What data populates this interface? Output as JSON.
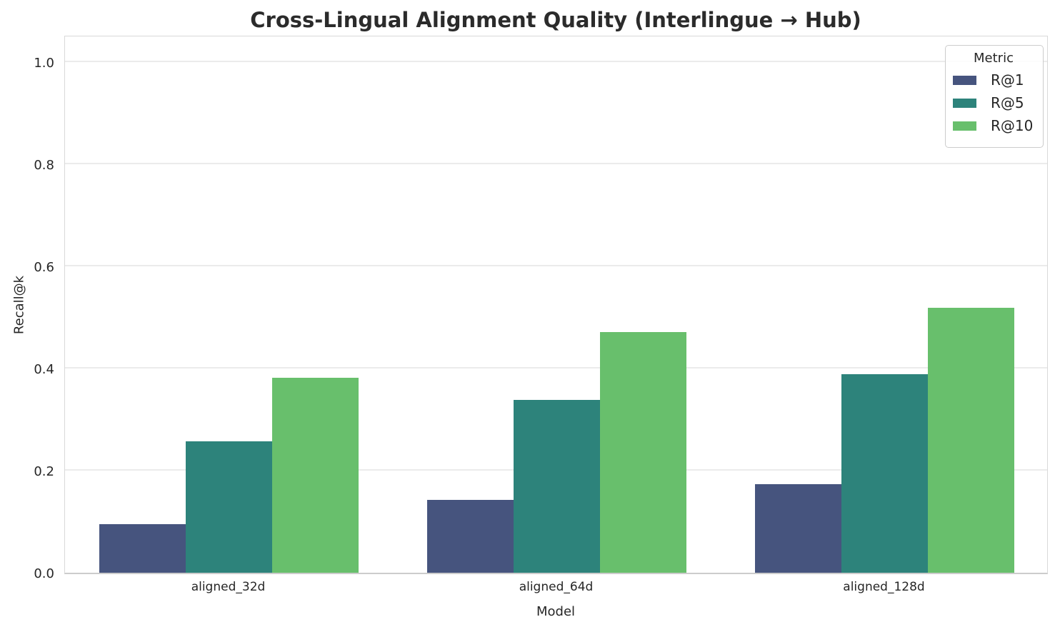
{
  "chart_data": {
    "type": "bar",
    "title": "Cross-Lingual Alignment Quality (Interlingue → Hub)",
    "xlabel": "Model",
    "ylabel": "Recall@k",
    "categories": [
      "aligned_32d",
      "aligned_64d",
      "aligned_128d"
    ],
    "series": [
      {
        "name": "R@1",
        "color": "#46547E",
        "values": [
          0.095,
          0.142,
          0.173
        ]
      },
      {
        "name": "R@5",
        "color": "#2D837B",
        "values": [
          0.257,
          0.338,
          0.389
        ]
      },
      {
        "name": "R@10",
        "color": "#68BF6C",
        "values": [
          0.382,
          0.471,
          0.518
        ]
      }
    ],
    "ylim": [
      0,
      1.054
    ],
    "ytick_values": [
      0.0,
      0.2,
      0.4,
      0.6,
      0.8,
      1.0
    ],
    "ytick_labels": [
      "0.0",
      "0.2",
      "0.4",
      "0.6",
      "0.8",
      "1.0"
    ],
    "grid": "horizontal",
    "legend": {
      "title": "Metric",
      "position": "upper right"
    }
  },
  "colors": {
    "grid": "#ebebeb",
    "spine": "#cccccc",
    "text": "#262626",
    "title": "#2b2b2b",
    "background": "#ffffff"
  }
}
